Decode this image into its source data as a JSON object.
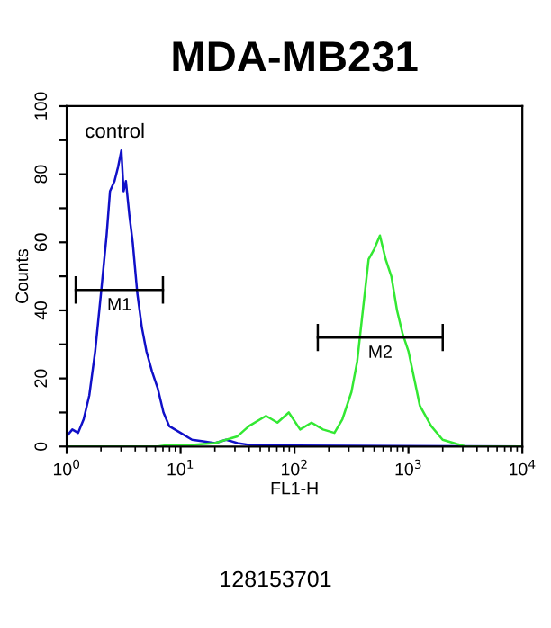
{
  "chart_data": {
    "type": "line",
    "title": "MDA-MB231",
    "xlabel": "FL1-H",
    "ylabel": "Counts",
    "log": "x",
    "xlim": [
      1,
      10000
    ],
    "xticks": [
      {
        "value": 1,
        "label": "10$^{0}$"
      },
      {
        "value": 10,
        "label": "10$^{1}$"
      },
      {
        "value": 100,
        "label": "10$^{2}$"
      },
      {
        "value": 1000,
        "label": "10$^{3}$"
      },
      {
        "value": 10000,
        "label": "10$^{4}$"
      }
    ],
    "ylim": [
      0,
      100
    ],
    "yticks": [
      0,
      {
        "value": 10,
        "label": null
      },
      20,
      {
        "value": 30,
        "label": null
      },
      40,
      {
        "value": 50,
        "label": null
      },
      60,
      {
        "value": 70,
        "label": null
      },
      80,
      {
        "value": 90,
        "label": null
      },
      100
    ],
    "grid": false,
    "series": [
      {
        "color": "#1010c8",
        "x": [
          1,
          1.12,
          1.26,
          1.41,
          1.58,
          1.78,
          2.0,
          2.24,
          2.4,
          2.63,
          2.82,
          3.02,
          3.16,
          3.31,
          3.55,
          3.8,
          4.17,
          4.57,
          5.01,
          5.62,
          6.31,
          7.08,
          7.94,
          10,
          12.6,
          15.8,
          20,
          25.1,
          31.6,
          39.8,
          100,
          10000
        ],
        "values": [
          3,
          5,
          4,
          8,
          15,
          28,
          45,
          62,
          75,
          78,
          82,
          87,
          75,
          78,
          68,
          60,
          45,
          35,
          28,
          22,
          17,
          10,
          6,
          4,
          2,
          1.5,
          1,
          2,
          1,
          0.5,
          0.3,
          0
        ]
      },
      {
        "color": "#33e833",
        "x": [
          1,
          6.31,
          7.94,
          12.6,
          20,
          31.6,
          39.8,
          56.2,
          70.8,
          89.1,
          112,
          141,
          178,
          224,
          263,
          316,
          355,
          398,
          447,
          501,
          562,
          631,
          708,
          794,
          891,
          1000,
          1122,
          1259,
          1585,
          1995,
          2512,
          3162,
          10000
        ],
        "values": [
          0,
          0,
          0.5,
          0.5,
          1,
          3,
          6,
          9,
          7,
          10,
          5,
          7,
          5,
          4,
          8,
          16,
          25,
          40,
          55,
          58,
          62,
          55,
          50,
          40,
          33,
          28,
          20,
          12,
          6,
          2,
          1,
          0,
          0
        ]
      },
      {
        "name": "M1",
        "color": "#000000",
        "x": [
          1.2,
          7
        ],
        "values": [
          46,
          46
        ],
        "errors": [
          4,
          4
        ]
      },
      {
        "name": "M2",
        "color": "#000000",
        "x": [
          160,
          2000
        ],
        "values": [
          32,
          32
        ],
        "errors": [
          4,
          4
        ]
      }
    ],
    "annotations": [
      "control",
      "128153701"
    ]
  }
}
